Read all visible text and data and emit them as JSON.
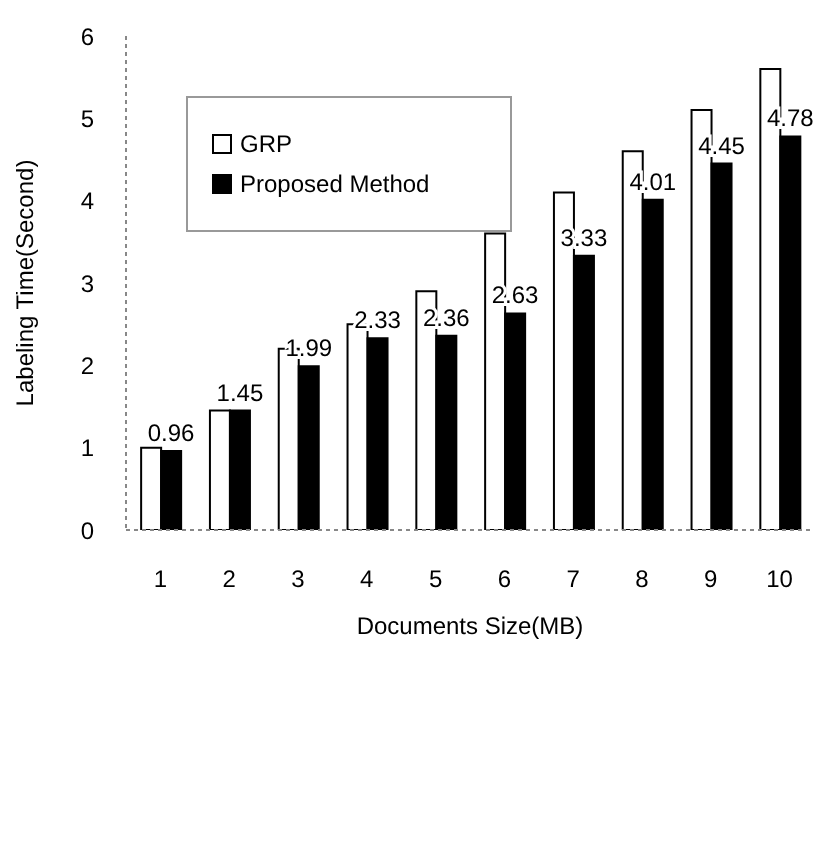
{
  "chart_data": {
    "type": "bar",
    "xlabel": "Documents Size(MB)",
    "ylabel": "Labeling Time(Second)",
    "categories": [
      "1",
      "2",
      "3",
      "4",
      "5",
      "6",
      "7",
      "8",
      "9",
      "10"
    ],
    "series": [
      {
        "name": "GRP",
        "color": "#ffffff",
        "values": [
          1.0,
          1.45,
          2.2,
          2.5,
          2.9,
          3.6,
          4.1,
          4.6,
          5.1,
          5.6
        ]
      },
      {
        "name": "Proposed Method",
        "color": "#000000",
        "values": [
          0.96,
          1.45,
          1.99,
          2.33,
          2.36,
          2.63,
          3.33,
          4.01,
          4.45,
          4.78
        ],
        "value_labels": [
          "0.96",
          "1.45",
          "1.99",
          "2.33",
          "2.36",
          "2.63",
          "3.33",
          "4.01",
          "4.45",
          "4.78"
        ]
      }
    ],
    "ylim": [
      0,
      6
    ],
    "yticks": [
      0,
      1,
      2,
      3,
      4,
      5,
      6
    ],
    "grid": false,
    "legend": "top left"
  }
}
